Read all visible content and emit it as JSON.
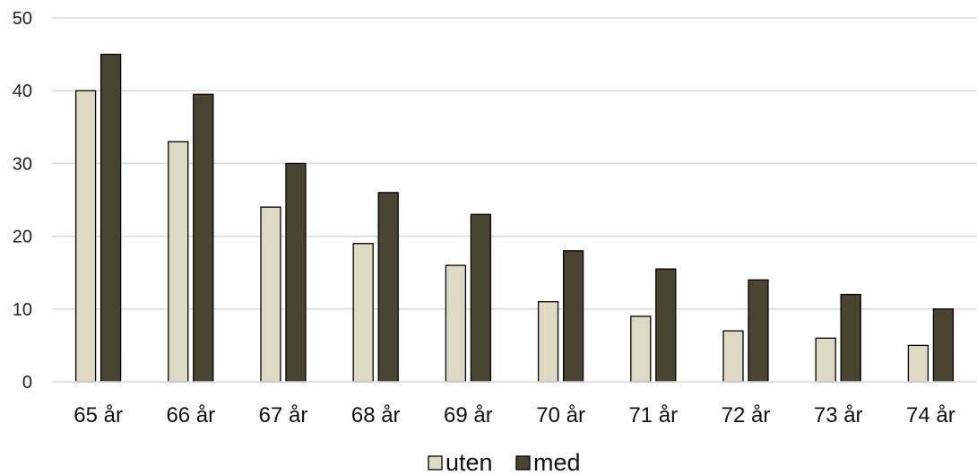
{
  "chart_data": {
    "type": "bar",
    "title": "",
    "xlabel": "",
    "ylabel": "",
    "ylim": [
      0,
      50
    ],
    "yticks": [
      0,
      10,
      20,
      30,
      40,
      50
    ],
    "grid": true,
    "legend_position": "bottom-center",
    "categories": [
      "65 år",
      "66 år",
      "67 år",
      "68 år",
      "69 år",
      "70 år",
      "71 år",
      "72 år",
      "73 år",
      "74 år"
    ],
    "series": [
      {
        "name": "uten",
        "color": "#ddd9c3",
        "values": [
          40,
          33,
          24,
          19,
          16,
          11,
          9,
          7,
          6,
          5
        ]
      },
      {
        "name": "med",
        "color": "#4a4530",
        "values": [
          45,
          39.5,
          30,
          26,
          23,
          18,
          15.5,
          14,
          12,
          10
        ]
      }
    ]
  }
}
